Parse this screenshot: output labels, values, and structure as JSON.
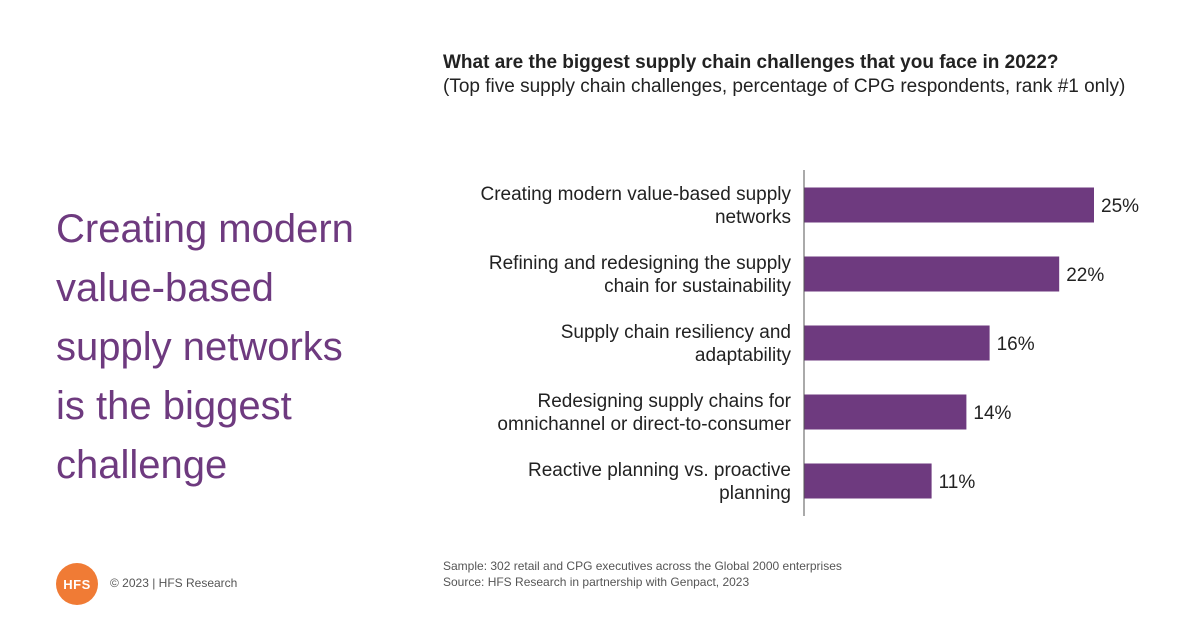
{
  "headline": {
    "lines": [
      "Creating modern",
      "value-based",
      "supply networks",
      "is the biggest",
      "challenge"
    ]
  },
  "colors": {
    "headline": "#6e3a7f",
    "bar": "#6e3a7f",
    "logo": "#f07b35"
  },
  "chart_data": {
    "type": "bar",
    "orientation": "horizontal",
    "title": "What are the biggest supply chain challenges that you face in 2022?",
    "subtitle": "(Top five supply chain challenges, percentage of CPG respondents, rank #1 only)",
    "categories": [
      [
        "Creating modern value-based supply",
        "networks"
      ],
      [
        "Refining and redesigning the supply",
        "chain for sustainability"
      ],
      [
        "Supply chain resiliency and",
        "adaptability"
      ],
      [
        "Redesigning supply chains for",
        "omnichannel or direct-to-consumer"
      ],
      [
        "Reactive planning vs. proactive",
        "planning"
      ]
    ],
    "values": [
      25,
      22,
      16,
      14,
      11
    ],
    "value_labels": [
      "25%",
      "22%",
      "16%",
      "14%",
      "11%"
    ],
    "xlim": [
      0,
      25
    ],
    "grid": false,
    "legend": "none"
  },
  "footnote": {
    "sample": "Sample: 302 retail and CPG executives across the Global 2000 enterprises",
    "source": "Source: HFS Research in partnership with Genpact, 2023"
  },
  "footer": {
    "logo_text": "HFS",
    "copyright": "© 2023 | HFS Research"
  }
}
